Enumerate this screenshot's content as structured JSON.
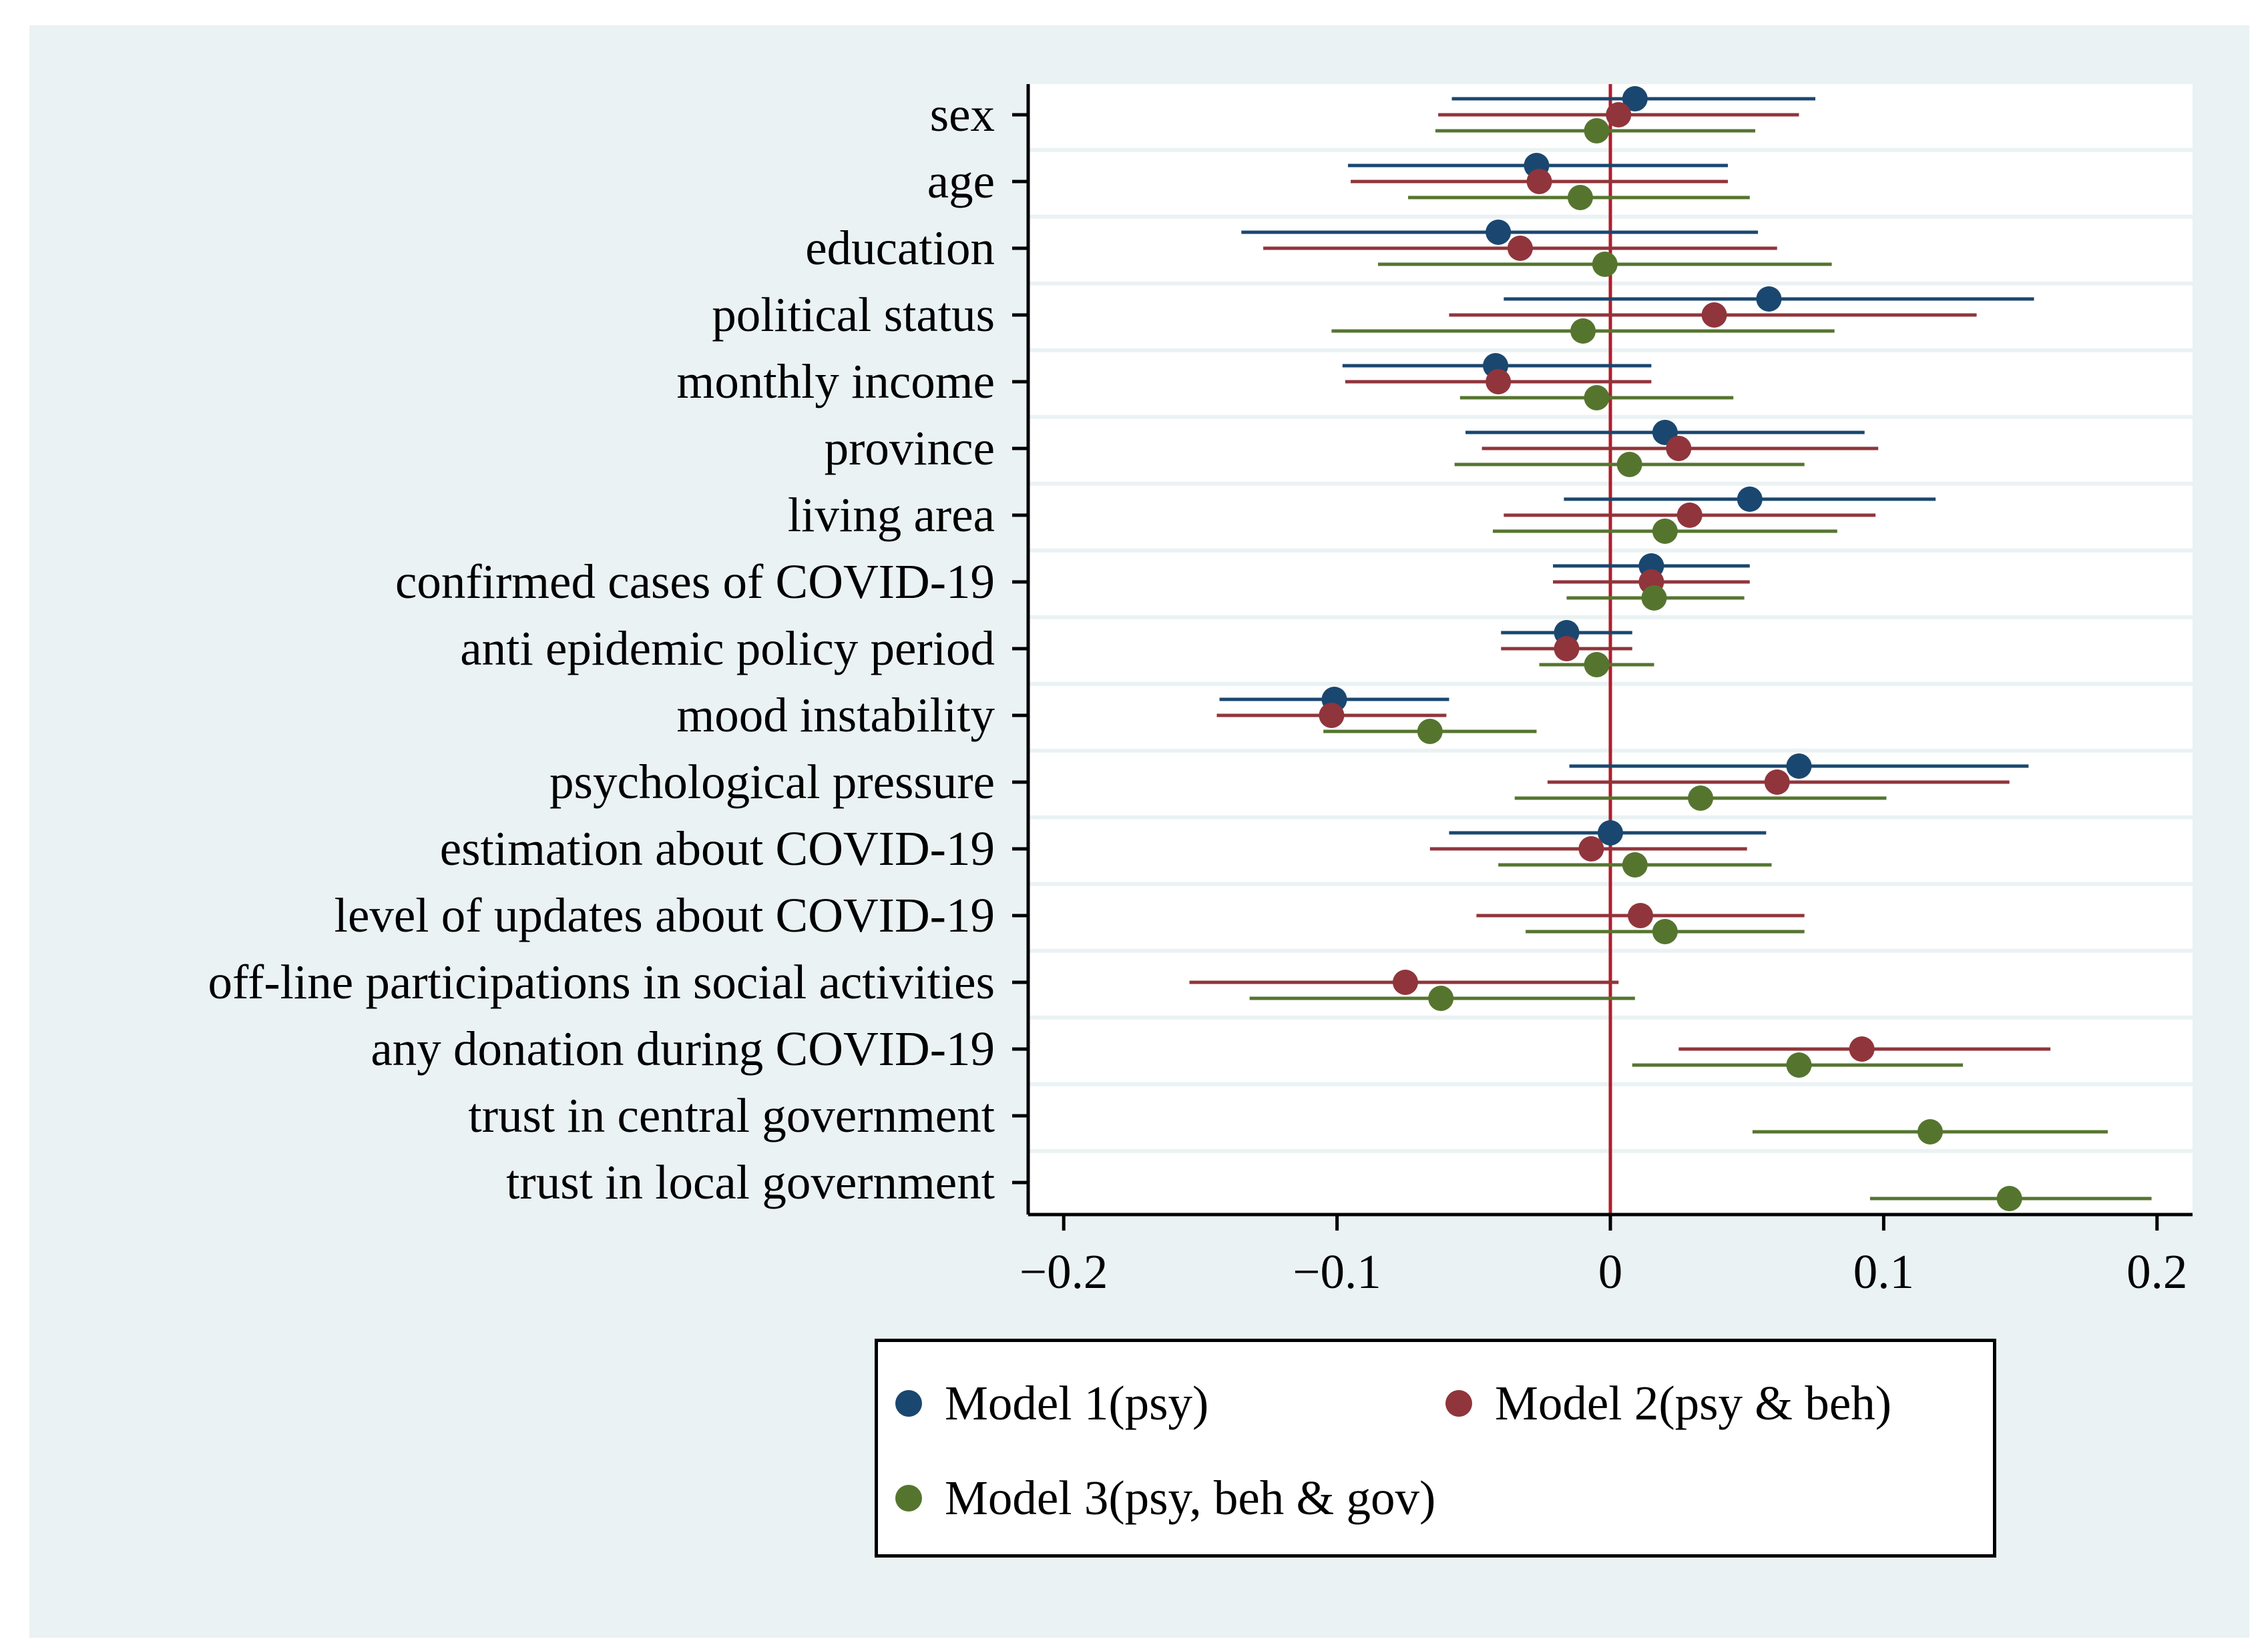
{
  "chart_data": {
    "type": "scatter",
    "subtype": "coefficient-plot-with-confidence-intervals",
    "title": "",
    "xlabel": "",
    "ylabel": "",
    "xlim": [
      -0.213,
      0.213
    ],
    "xticks": [
      -0.2,
      -0.1,
      0,
      0.1,
      0.2
    ],
    "xtick_labels": [
      "−0.2",
      "−0.1",
      "0",
      "0.1",
      "0.2"
    ],
    "reference_line": {
      "x": 0,
      "color": "#b01e2d"
    },
    "categories": [
      "sex",
      "age",
      "education",
      "political status",
      "monthly income",
      "province",
      "living area",
      "confirmed cases of COVID-19",
      "anti epidemic policy period",
      "mood instability",
      "psychological pressure",
      "estimation about COVID-19",
      "level of updates about COVID-19",
      "off-line participations in social activities",
      "any donation during COVID-19",
      "trust in central government",
      "trust in local government"
    ],
    "series": [
      {
        "name": "Model 1(psy)",
        "color": "#1a476f",
        "points": [
          {
            "estimate": 0.009,
            "ci": [
              -0.058,
              0.075
            ]
          },
          {
            "estimate": -0.027,
            "ci": [
              -0.096,
              0.043
            ]
          },
          {
            "estimate": -0.041,
            "ci": [
              -0.135,
              0.054
            ]
          },
          {
            "estimate": 0.058,
            "ci": [
              -0.039,
              0.155
            ]
          },
          {
            "estimate": -0.042,
            "ci": [
              -0.098,
              0.015
            ]
          },
          {
            "estimate": 0.02,
            "ci": [
              -0.053,
              0.093
            ]
          },
          {
            "estimate": 0.051,
            "ci": [
              -0.017,
              0.119
            ]
          },
          {
            "estimate": 0.015,
            "ci": [
              -0.021,
              0.051
            ]
          },
          {
            "estimate": -0.016,
            "ci": [
              -0.04,
              0.008
            ]
          },
          {
            "estimate": -0.101,
            "ci": [
              -0.143,
              -0.059
            ]
          },
          {
            "estimate": 0.069,
            "ci": [
              -0.015,
              0.153
            ]
          },
          {
            "estimate": 0.0,
            "ci": [
              -0.059,
              0.057
            ]
          },
          null,
          null,
          null,
          null,
          null
        ]
      },
      {
        "name": "Model 2(psy & beh)",
        "color": "#90353b",
        "points": [
          {
            "estimate": 0.003,
            "ci": [
              -0.063,
              0.069
            ]
          },
          {
            "estimate": -0.026,
            "ci": [
              -0.095,
              0.043
            ]
          },
          {
            "estimate": -0.033,
            "ci": [
              -0.127,
              0.061
            ]
          },
          {
            "estimate": 0.038,
            "ci": [
              -0.059,
              0.134
            ]
          },
          {
            "estimate": -0.041,
            "ci": [
              -0.097,
              0.015
            ]
          },
          {
            "estimate": 0.025,
            "ci": [
              -0.047,
              0.098
            ]
          },
          {
            "estimate": 0.029,
            "ci": [
              -0.039,
              0.097
            ]
          },
          {
            "estimate": 0.015,
            "ci": [
              -0.021,
              0.051
            ]
          },
          {
            "estimate": -0.016,
            "ci": [
              -0.04,
              0.008
            ]
          },
          {
            "estimate": -0.102,
            "ci": [
              -0.144,
              -0.06
            ]
          },
          {
            "estimate": 0.061,
            "ci": [
              -0.023,
              0.146
            ]
          },
          {
            "estimate": -0.007,
            "ci": [
              -0.066,
              0.05
            ]
          },
          {
            "estimate": 0.011,
            "ci": [
              -0.049,
              0.071
            ]
          },
          {
            "estimate": -0.075,
            "ci": [
              -0.154,
              0.003
            ]
          },
          {
            "estimate": 0.092,
            "ci": [
              0.025,
              0.161
            ]
          },
          null,
          null
        ]
      },
      {
        "name": "Model 3(psy, beh & gov)",
        "color": "#55752f",
        "points": [
          {
            "estimate": -0.005,
            "ci": [
              -0.064,
              0.053
            ]
          },
          {
            "estimate": -0.011,
            "ci": [
              -0.074,
              0.051
            ]
          },
          {
            "estimate": -0.002,
            "ci": [
              -0.085,
              0.081
            ]
          },
          {
            "estimate": -0.01,
            "ci": [
              -0.102,
              0.082
            ]
          },
          {
            "estimate": -0.005,
            "ci": [
              -0.055,
              0.045
            ]
          },
          {
            "estimate": 0.007,
            "ci": [
              -0.057,
              0.071
            ]
          },
          {
            "estimate": 0.02,
            "ci": [
              -0.043,
              0.083
            ]
          },
          {
            "estimate": 0.016,
            "ci": [
              -0.016,
              0.049
            ]
          },
          {
            "estimate": -0.005,
            "ci": [
              -0.026,
              0.016
            ]
          },
          {
            "estimate": -0.066,
            "ci": [
              -0.105,
              -0.027
            ]
          },
          {
            "estimate": 0.033,
            "ci": [
              -0.035,
              0.101
            ]
          },
          {
            "estimate": 0.009,
            "ci": [
              -0.041,
              0.059
            ]
          },
          {
            "estimate": 0.02,
            "ci": [
              -0.031,
              0.071
            ]
          },
          {
            "estimate": -0.062,
            "ci": [
              -0.132,
              0.009
            ]
          },
          {
            "estimate": 0.069,
            "ci": [
              0.008,
              0.129
            ]
          },
          {
            "estimate": 0.117,
            "ci": [
              0.052,
              0.182
            ]
          },
          {
            "estimate": 0.146,
            "ci": [
              0.095,
              0.198
            ]
          }
        ]
      }
    ],
    "legend": {
      "placement": "bottom",
      "entries": [
        "Model 1(psy)",
        "Model 2(psy & beh)",
        "Model 3(psy, beh & gov)"
      ]
    }
  }
}
